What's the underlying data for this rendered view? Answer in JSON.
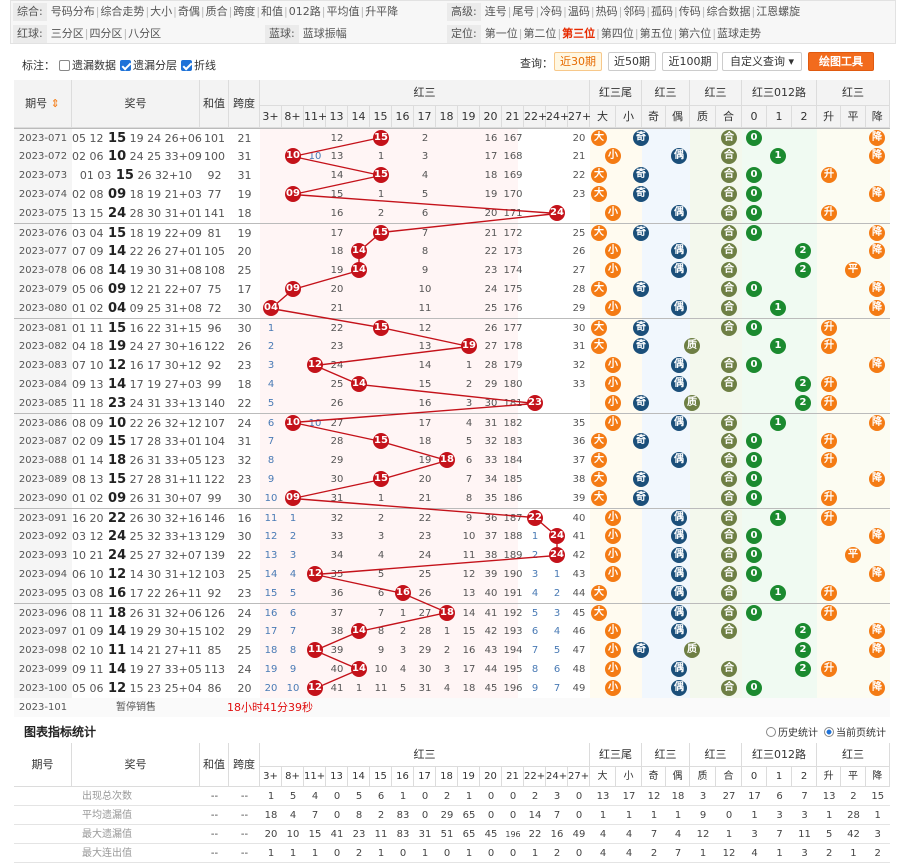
{
  "nav": {
    "left": [
      {
        "label": "综合:",
        "items": [
          "号码分布",
          "综合走势",
          "大小",
          "奇偶",
          "质合",
          "跨度",
          "和值",
          "012路",
          "平均值",
          "升平降"
        ]
      },
      {
        "label": "红球:",
        "items": [
          "三分区",
          "四分区",
          "八分区"
        ]
      }
    ],
    "mid_label": "蓝球:",
    "mid_items": [
      "蓝球振幅"
    ],
    "right": [
      {
        "label": "高级:",
        "items": [
          "连号",
          "尾号",
          "冷码",
          "温码",
          "热码",
          "邻码",
          "孤码",
          "传码",
          "综合数据",
          "江恩螺旋"
        ]
      },
      {
        "label": "定位:",
        "items": [
          "第一位",
          "第二位",
          "第三位",
          "第四位",
          "第五位",
          "第六位",
          "蓝球走势"
        ],
        "active": "第三位"
      }
    ]
  },
  "marker": {
    "label": "标注：",
    "options": [
      {
        "text": "遗漏数据",
        "checked": false
      },
      {
        "text": "遗漏分层",
        "checked": true
      },
      {
        "text": "折线",
        "checked": true
      }
    ]
  },
  "query": {
    "label": "查询：",
    "buttons": [
      "近30期",
      "近50期",
      "近100期",
      "自定义查询"
    ],
    "active": "近30期",
    "tool": "绘图工具"
  },
  "header": {
    "period": "期号",
    "number": "奖号",
    "sum": "和值",
    "span": "跨度",
    "red": "红三",
    "tail": "红三尾",
    "oe": "红三",
    "pc": "红三",
    "route": "红三012路",
    "trend": "红三"
  },
  "subs": {
    "red": [
      "3+",
      "8+",
      "11+",
      "13",
      "14",
      "15",
      "16",
      "17",
      "18",
      "19",
      "20",
      "21",
      "22+",
      "24+",
      "27+"
    ],
    "tail": [
      "大",
      "小"
    ],
    "oe": [
      "奇",
      "偶"
    ],
    "pc": [
      "质",
      "合"
    ],
    "route": [
      "0",
      "1",
      "2"
    ],
    "trend": [
      "升",
      "平",
      "降"
    ]
  },
  "rows": [
    {
      "p": "2023-071",
      "n": "05 12 15 19 24 26+06",
      "s": "101",
      "k": "21",
      "v": 15,
      "m": [
        "",
        "",
        "",
        "12",
        "",
        "15",
        "",
        "2",
        "",
        "",
        "16",
        "167",
        "",
        "",
        "20"
      ],
      "t": "大",
      "o": "奇",
      "c": "合",
      "r": "0",
      "tr": "降"
    },
    {
      "p": "2023-072",
      "n": "02 06 10 24 25 33+09",
      "s": "100",
      "k": "31",
      "v": 10,
      "m": [
        "",
        "",
        "10",
        "13",
        "",
        "1",
        "",
        "3",
        "",
        "",
        "17",
        "168",
        "",
        "",
        "21"
      ],
      "t": "小",
      "o": "偶",
      "c": "合",
      "r": "1",
      "tr": "降"
    },
    {
      "p": "2023-073",
      "n": "01 03 15 26 32+10",
      "s": "92",
      "k": "31",
      "v": 15,
      "m": [
        "",
        "",
        "",
        "14",
        "",
        "15",
        "",
        "4",
        "",
        "",
        "18",
        "169",
        "",
        "",
        "22"
      ],
      "t": "大",
      "o": "奇",
      "c": "合",
      "r": "0",
      "tr": "升"
    },
    {
      "p": "2023-074",
      "n": "02 08 09 18 19 21+03",
      "s": "77",
      "k": "19",
      "v": 9,
      "m": [
        "",
        "09",
        "",
        "15",
        "",
        "1",
        "",
        "5",
        "",
        "",
        "19",
        "170",
        "",
        "",
        "23"
      ],
      "t": "大",
      "o": "奇",
      "c": "合",
      "r": "0",
      "tr": "降"
    },
    {
      "p": "2023-075",
      "n": "13 15 24 28 30 31+01",
      "s": "141",
      "k": "18",
      "v": 24,
      "m": [
        "",
        "",
        "",
        "16",
        "",
        "2",
        "",
        "6",
        "",
        "",
        "20",
        "171",
        "",
        "24",
        ""
      ],
      "t": "小",
      "o": "偶",
      "c": "合",
      "r": "0",
      "tr": "升"
    },
    {
      "p": "2023-076",
      "n": "03 04 15 18 19 22+09",
      "s": "81",
      "k": "19",
      "v": 15,
      "m": [
        "",
        "",
        "",
        "17",
        "",
        "15",
        "",
        "7",
        "",
        "",
        "21",
        "172",
        "",
        "",
        "25"
      ],
      "t": "大",
      "o": "奇",
      "c": "合",
      "r": "0",
      "tr": "降"
    },
    {
      "p": "2023-077",
      "n": "07 09 14 22 26 27+01",
      "s": "105",
      "k": "20",
      "v": 14,
      "m": [
        "",
        "",
        "",
        "18",
        "14",
        "",
        "",
        "8",
        "",
        "",
        "22",
        "173",
        "",
        "",
        "26"
      ],
      "t": "小",
      "o": "偶",
      "c": "合",
      "r": "2",
      "tr": "降"
    },
    {
      "p": "2023-078",
      "n": "06 08 14 19 30 31+08",
      "s": "108",
      "k": "25",
      "v": 14,
      "m": [
        "",
        "",
        "",
        "19",
        "14",
        "",
        "",
        "9",
        "",
        "",
        "23",
        "174",
        "",
        "",
        "27"
      ],
      "t": "小",
      "o": "偶",
      "c": "合",
      "r": "2",
      "tr": "平"
    },
    {
      "p": "2023-079",
      "n": "05 06 09 12 21 22+07",
      "s": "75",
      "k": "17",
      "v": 9,
      "m": [
        "",
        "09",
        "",
        "20",
        "",
        "",
        "",
        "10",
        "",
        "",
        "24",
        "175",
        "",
        "",
        "28"
      ],
      "t": "大",
      "o": "奇",
      "c": "合",
      "r": "0",
      "tr": "降"
    },
    {
      "p": "2023-080",
      "n": "01 02 04 09 25 31+08",
      "s": "72",
      "k": "30",
      "v": 4,
      "m": [
        "04",
        "",
        "",
        "21",
        "",
        "",
        "",
        "11",
        "",
        "",
        "25",
        "176",
        "",
        "",
        "29"
      ],
      "t": "小",
      "o": "偶",
      "c": "合",
      "r": "1",
      "tr": "降"
    },
    {
      "p": "2023-081",
      "n": "01 11 15 16 22 31+15",
      "s": "96",
      "k": "30",
      "v": 15,
      "m": [
        "1",
        "",
        "",
        "22",
        "",
        "15",
        "",
        "12",
        "",
        "",
        "26",
        "177",
        "",
        "",
        "30"
      ],
      "t": "大",
      "o": "奇",
      "c": "合",
      "r": "0",
      "tr": "升"
    },
    {
      "p": "2023-082",
      "n": "04 18 19 24 27 30+16",
      "s": "122",
      "k": "26",
      "v": 19,
      "m": [
        "2",
        "",
        "",
        "23",
        "",
        "",
        "",
        "13",
        "",
        "19",
        "27",
        "178",
        "",
        "",
        "31"
      ],
      "t": "大",
      "o": "奇",
      "c": "质",
      "r": "1",
      "tr": "升"
    },
    {
      "p": "2023-083",
      "n": "07 10 12 16 17 30+12",
      "s": "92",
      "k": "23",
      "v": 12,
      "m": [
        "3",
        "",
        "12",
        "24",
        "",
        "",
        "",
        "14",
        "",
        "1",
        "28",
        "179",
        "",
        "",
        "32"
      ],
      "t": "小",
      "o": "偶",
      "c": "合",
      "r": "0",
      "tr": "降"
    },
    {
      "p": "2023-084",
      "n": "09 13 14 17 19 27+03",
      "s": "99",
      "k": "18",
      "v": 14,
      "m": [
        "4",
        "",
        "",
        "25",
        "14",
        "",
        "",
        "15",
        "",
        "2",
        "29",
        "180",
        "",
        "",
        "33"
      ],
      "t": "小",
      "o": "偶",
      "c": "合",
      "r": "2",
      "tr": "升"
    },
    {
      "p": "2023-085",
      "n": "11 18 23 24 31 33+13",
      "s": "140",
      "k": "22",
      "v": 23,
      "m": [
        "5",
        "",
        "",
        "26",
        "",
        "",
        "",
        "16",
        "",
        "3",
        "30",
        "181",
        "23",
        "",
        ""
      ],
      "t": "小",
      "o": "奇",
      "c": "质",
      "r": "2",
      "tr": "升"
    },
    {
      "p": "2023-086",
      "n": "08 09 10 22 26 32+12",
      "s": "107",
      "k": "24",
      "v": 10,
      "m": [
        "6",
        "",
        "10",
        "27",
        "",
        "",
        "",
        "17",
        "",
        "4",
        "31",
        "182",
        "",
        "",
        "35"
      ],
      "t": "小",
      "o": "偶",
      "c": "合",
      "r": "1",
      "tr": "降"
    },
    {
      "p": "2023-087",
      "n": "02 09 15 17 28 33+01",
      "s": "104",
      "k": "31",
      "v": 15,
      "m": [
        "7",
        "",
        "",
        "28",
        "",
        "15",
        "",
        "18",
        "",
        "5",
        "32",
        "183",
        "",
        "",
        "36"
      ],
      "t": "大",
      "o": "奇",
      "c": "合",
      "r": "0",
      "tr": "升"
    },
    {
      "p": "2023-088",
      "n": "01 14 18 26 31 33+05",
      "s": "123",
      "k": "32",
      "v": 18,
      "m": [
        "8",
        "",
        "",
        "29",
        "",
        "",
        "",
        "19",
        "18",
        "6",
        "33",
        "184",
        "",
        "",
        "37"
      ],
      "t": "大",
      "o": "偶",
      "c": "合",
      "r": "0",
      "tr": "升"
    },
    {
      "p": "2023-089",
      "n": "08 13 15 27 28 31+11",
      "s": "122",
      "k": "23",
      "v": 15,
      "m": [
        "9",
        "",
        "",
        "30",
        "",
        "15",
        "",
        "20",
        "",
        "7",
        "34",
        "185",
        "",
        "",
        "38"
      ],
      "t": "大",
      "o": "奇",
      "c": "合",
      "r": "0",
      "tr": "降"
    },
    {
      "p": "2023-090",
      "n": "01 02 09 26 31 30+07",
      "s": "99",
      "k": "30",
      "v": 9,
      "m": [
        "10",
        "09",
        "",
        "31",
        "",
        "1",
        "",
        "21",
        "",
        "8",
        "35",
        "186",
        "",
        "",
        "39"
      ],
      "t": "大",
      "o": "奇",
      "c": "合",
      "r": "0",
      "tr": "升"
    },
    {
      "p": "2023-091",
      "n": "16 20 22 26 30 32+16",
      "s": "146",
      "k": "16",
      "v": 22,
      "m": [
        "11",
        "1",
        "",
        "32",
        "",
        "2",
        "",
        "22",
        "",
        "9",
        "36",
        "187",
        "22",
        "",
        "40"
      ],
      "t": "小",
      "o": "偶",
      "c": "合",
      "r": "1",
      "tr": "升"
    },
    {
      "p": "2023-092",
      "n": "03 12 24 25 32 33+13",
      "s": "129",
      "k": "30",
      "v": 24,
      "m": [
        "12",
        "2",
        "",
        "33",
        "",
        "3",
        "",
        "23",
        "",
        "10",
        "37",
        "188",
        "1",
        "24",
        "41"
      ],
      "t": "小",
      "o": "偶",
      "c": "合",
      "r": "0",
      "tr": "降"
    },
    {
      "p": "2023-093",
      "n": "10 21 24 25 27 32+07",
      "s": "139",
      "k": "22",
      "v": 24,
      "m": [
        "13",
        "3",
        "",
        "34",
        "",
        "4",
        "",
        "24",
        "",
        "11",
        "38",
        "189",
        "2",
        "24",
        "42"
      ],
      "t": "小",
      "o": "偶",
      "c": "合",
      "r": "0",
      "tr": "平"
    },
    {
      "p": "2023-094",
      "n": "06 10 12 14 30 31+12",
      "s": "103",
      "k": "25",
      "v": 12,
      "m": [
        "14",
        "4",
        "12",
        "35",
        "",
        "5",
        "",
        "25",
        "",
        "12",
        "39",
        "190",
        "3",
        "1",
        "43"
      ],
      "t": "小",
      "o": "偶",
      "c": "合",
      "r": "0",
      "tr": "降"
    },
    {
      "p": "2023-095",
      "n": "03 08 16 17 22 26+11",
      "s": "92",
      "k": "23",
      "v": 16,
      "m": [
        "15",
        "5",
        "",
        "36",
        "",
        "6",
        "16",
        "26",
        "",
        "13",
        "40",
        "191",
        "4",
        "2",
        "44"
      ],
      "t": "大",
      "o": "偶",
      "c": "合",
      "r": "1",
      "tr": "升"
    },
    {
      "p": "2023-096",
      "n": "08 11 18 26 31 32+06",
      "s": "126",
      "k": "24",
      "v": 18,
      "m": [
        "16",
        "6",
        "",
        "37",
        "",
        "7",
        "1",
        "27",
        "18",
        "14",
        "41",
        "192",
        "5",
        "3",
        "45"
      ],
      "t": "大",
      "o": "偶",
      "c": "合",
      "r": "0",
      "tr": "升"
    },
    {
      "p": "2023-097",
      "n": "01 09 14 19 29 30+15",
      "s": "102",
      "k": "29",
      "v": 14,
      "m": [
        "17",
        "7",
        "",
        "38",
        "14",
        "8",
        "2",
        "28",
        "1",
        "15",
        "42",
        "193",
        "6",
        "4",
        "46"
      ],
      "t": "小",
      "o": "偶",
      "c": "合",
      "r": "2",
      "tr": "降"
    },
    {
      "p": "2023-098",
      "n": "02 10 11 14 21 27+11",
      "s": "85",
      "k": "25",
      "v": 11,
      "m": [
        "18",
        "8",
        "11",
        "39",
        "",
        "9",
        "3",
        "29",
        "2",
        "16",
        "43",
        "194",
        "7",
        "5",
        "47"
      ],
      "t": "小",
      "o": "奇",
      "c": "质",
      "r": "2",
      "tr": "降"
    },
    {
      "p": "2023-099",
      "n": "09 11 14 19 27 33+05",
      "s": "113",
      "k": "24",
      "v": 14,
      "m": [
        "19",
        "9",
        "",
        "40",
        "14",
        "10",
        "4",
        "30",
        "3",
        "17",
        "44",
        "195",
        "8",
        "6",
        "48"
      ],
      "t": "小",
      "o": "偶",
      "c": "合",
      "r": "2",
      "tr": "升"
    },
    {
      "p": "2023-100",
      "n": "05 06 12 15 23 25+04",
      "s": "86",
      "k": "20",
      "v": 12,
      "m": [
        "20",
        "10",
        "12",
        "41",
        "1",
        "11",
        "5",
        "31",
        "4",
        "18",
        "45",
        "196",
        "9",
        "7",
        "49"
      ],
      "t": "小",
      "o": "偶",
      "c": "合",
      "r": "0",
      "tr": "降"
    }
  ],
  "next": {
    "p": "2023-101",
    "status": "暂停销售",
    "countdown": "18小时41分39秒"
  },
  "stats": {
    "title": "图表指标统计",
    "modes": [
      {
        "text": "历史统计",
        "checked": false
      },
      {
        "text": "当前页统计",
        "checked": true
      }
    ],
    "rows": [
      {
        "label": "出现总次数",
        "vals": [
          "1",
          "5",
          "4",
          "0",
          "5",
          "6",
          "1",
          "0",
          "2",
          "1",
          "0",
          "0",
          "2",
          "3",
          "0",
          "13",
          "17",
          "12",
          "18",
          "3",
          "27",
          "17",
          "6",
          "7",
          "13",
          "2",
          "15"
        ]
      },
      {
        "label": "平均遗漏值",
        "vals": [
          "18",
          "4",
          "7",
          "0",
          "8",
          "2",
          "83",
          "0",
          "29",
          "65",
          "0",
          "0",
          "14",
          "7",
          "0",
          "1",
          "1",
          "1",
          "1",
          "9",
          "0",
          "1",
          "3",
          "3",
          "1",
          "28",
          "1"
        ]
      },
      {
        "label": "最大遗漏值",
        "vals": [
          "20",
          "10",
          "15",
          "41",
          "23",
          "11",
          "83",
          "31",
          "51",
          "65",
          "45",
          "196",
          "22",
          "16",
          "49",
          "4",
          "4",
          "7",
          "4",
          "12",
          "1",
          "3",
          "7",
          "11",
          "5",
          "42",
          "3"
        ]
      },
      {
        "label": "最大连出值",
        "vals": [
          "1",
          "1",
          "1",
          "0",
          "2",
          "1",
          "0",
          "1",
          "0",
          "1",
          "0",
          "0",
          "1",
          "2",
          "0",
          "4",
          "4",
          "2",
          "7",
          "1",
          "12",
          "4",
          "1",
          "3",
          "2",
          "1",
          "2"
        ]
      }
    ]
  },
  "colors": {
    "red": "#c4121a",
    "orange": "#f47b14",
    "navy": "#1b4f7a",
    "green": "#1b8a2f",
    "olive": "#6e7f44"
  }
}
